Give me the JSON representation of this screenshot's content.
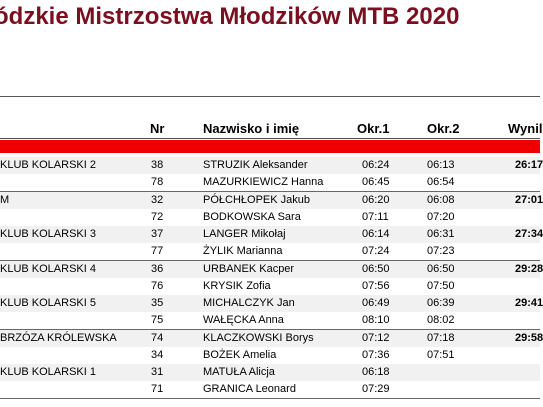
{
  "title": "ódzkie Mistrzostwa Młodzików MTB 2020",
  "columns": {
    "nr": "Nr",
    "name": "Nazwisko i imię",
    "lap1": "Okr.1",
    "lap2": "Okr.2",
    "result": "Wynil"
  },
  "teams": [
    {
      "club": "KLUB KOLARSKI 2",
      "result": "26:17",
      "riders": [
        {
          "nr": "38",
          "name": "STRUZIK Aleksander",
          "lap1": "06:24",
          "lap2": "06:13"
        },
        {
          "nr": "78",
          "name": "MAZURKIEWICZ Hanna",
          "lap1": "06:45",
          "lap2": "06:54"
        }
      ]
    },
    {
      "club": "M",
      "result": "27:01",
      "riders": [
        {
          "nr": "32",
          "name": "PÓŁCHŁOPEK Jakub",
          "lap1": "06:20",
          "lap2": "06:08"
        },
        {
          "nr": "72",
          "name": "BODKOWSKA Sara",
          "lap1": "07:11",
          "lap2": "07:20"
        }
      ]
    },
    {
      "club": "KLUB KOLARSKI 3",
      "result": "27:34",
      "riders": [
        {
          "nr": "37",
          "name": "LANGER Mikołaj",
          "lap1": "06:14",
          "lap2": "06:31"
        },
        {
          "nr": "77",
          "name": "ŻYLIK Marianna",
          "lap1": "07:24",
          "lap2": "07:23"
        }
      ]
    },
    {
      "club": "KLUB KOLARSKI 4",
      "result": "29:28",
      "riders": [
        {
          "nr": "36",
          "name": "URBANEK Kacper",
          "lap1": "06:50",
          "lap2": "06:50"
        },
        {
          "nr": "76",
          "name": "KRYSIK Zofia",
          "lap1": "07:56",
          "lap2": "07:50"
        }
      ]
    },
    {
      "club": "KLUB KOLARSKI 5",
      "result": "29:41",
      "riders": [
        {
          "nr": "35",
          "name": "MICHALCZYK Jan",
          "lap1": "06:49",
          "lap2": "06:39"
        },
        {
          "nr": "75",
          "name": "WAŁĘCKA Anna",
          "lap1": "08:10",
          "lap2": "08:02"
        }
      ]
    },
    {
      "club": "BRZÓZA KRÓLEWSKA",
      "result": "29:58",
      "riders": [
        {
          "nr": "74",
          "name": "KLACZKOWSKI Borys",
          "lap1": "07:12",
          "lap2": "07:18"
        },
        {
          "nr": "34",
          "name": "BOŻEK Amelia",
          "lap1": "07:36",
          "lap2": "07:51"
        }
      ]
    },
    {
      "club": "KLUB KOLARSKI 1",
      "result": "",
      "riders": [
        {
          "nr": "31",
          "name": "MATUŁA Alicja",
          "lap1": "06:18",
          "lap2": ""
        },
        {
          "nr": "71",
          "name": "GRANICA Leonard",
          "lap1": "07:29",
          "lap2": ""
        }
      ]
    }
  ]
}
